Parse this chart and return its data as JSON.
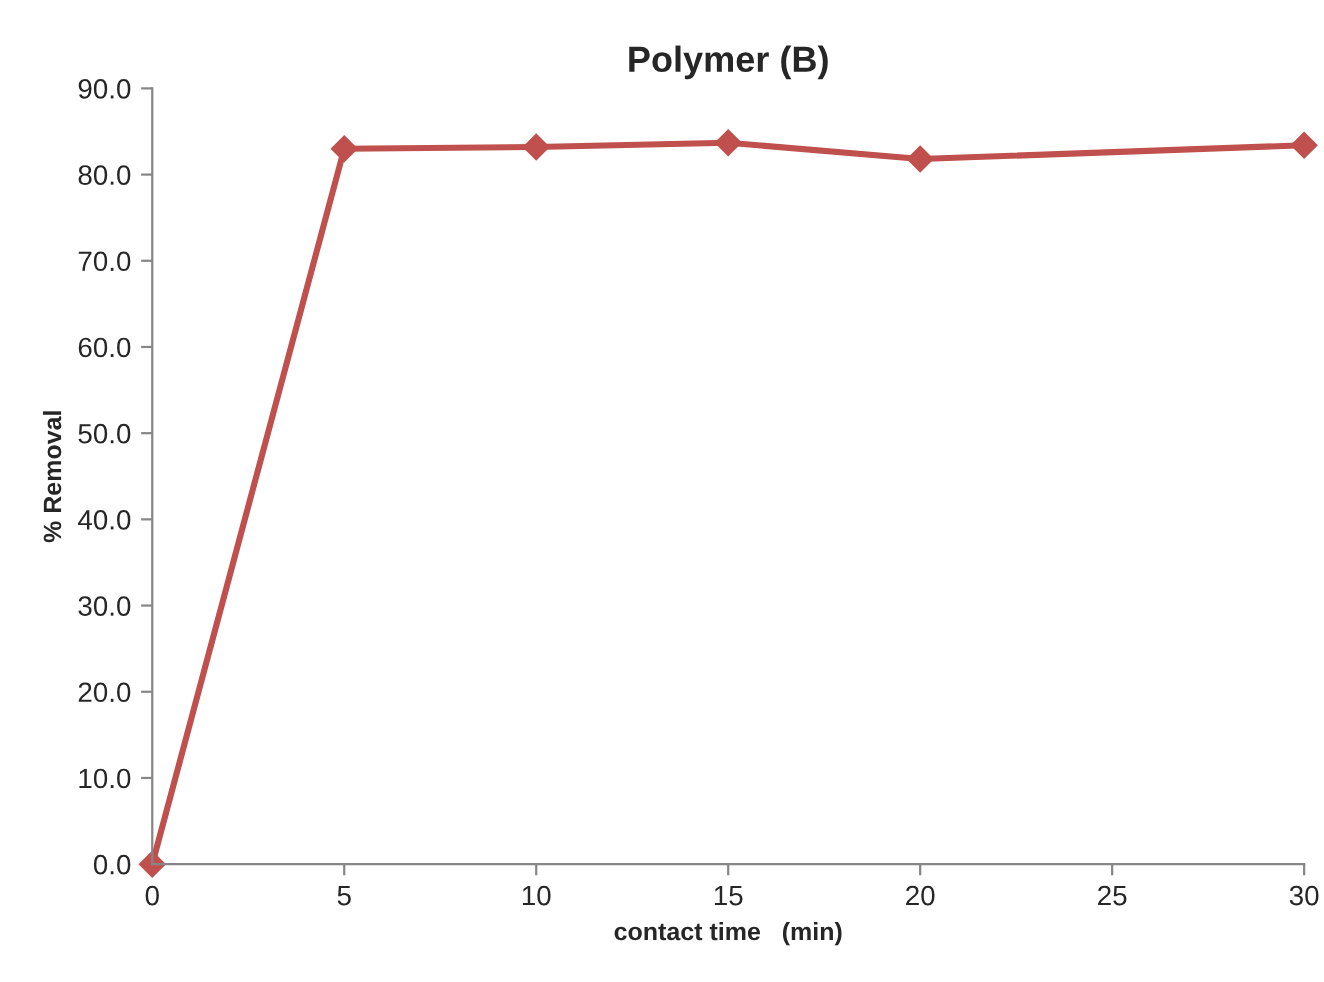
{
  "chart_data": {
    "type": "line",
    "title": "Polymer (B)",
    "xlabel": "contact time   (min)",
    "ylabel": "% Removal",
    "x": [
      0,
      5,
      10,
      15,
      20,
      30
    ],
    "series": [
      {
        "color": "#c0504d",
        "values": [
          0.0,
          83.0,
          83.2,
          83.7,
          81.8,
          83.4
        ]
      }
    ],
    "xlim": [
      0,
      30
    ],
    "xticks": [
      0,
      5,
      10,
      15,
      20,
      25,
      30
    ],
    "ylim": [
      0,
      90
    ],
    "yticks": [
      {
        "value": 0,
        "label": "0.0"
      },
      {
        "value": 10,
        "label": "10.0"
      },
      {
        "value": 20,
        "label": "20.0"
      },
      {
        "value": 30,
        "label": "30.0"
      },
      {
        "value": 40,
        "label": "40.0"
      },
      {
        "value": 50,
        "label": "50.0"
      },
      {
        "value": 60,
        "label": "60.0"
      },
      {
        "value": 70,
        "label": "70.0"
      },
      {
        "value": 80,
        "label": "80.0"
      },
      {
        "value": 90,
        "label": "90.0"
      }
    ],
    "grid": false,
    "legend": false,
    "marker": "diamond",
    "line_style": "solid"
  }
}
